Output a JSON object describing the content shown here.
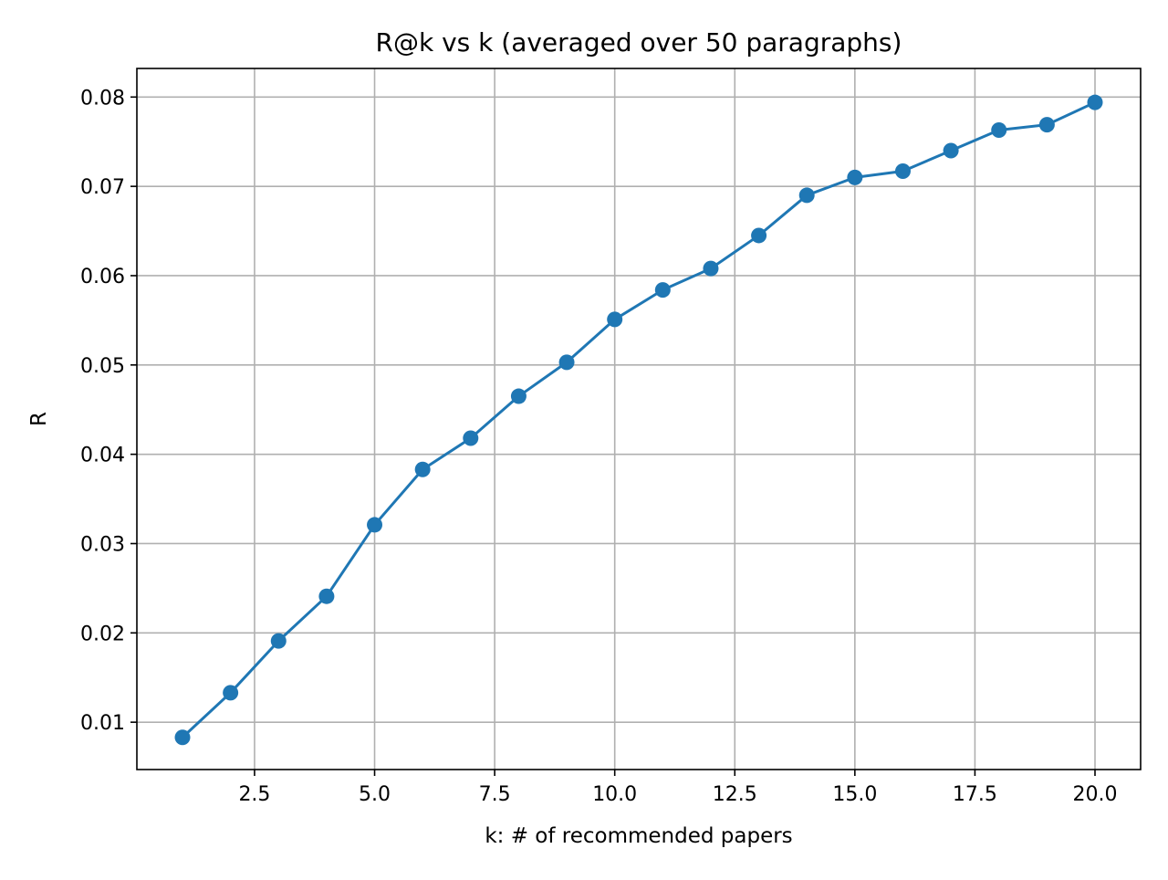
{
  "chart_data": {
    "type": "line",
    "title": "R@k vs k  (averaged over 50 paragraphs)",
    "xlabel": "k: # of recommended papers",
    "ylabel": "R",
    "xlim": [
      0.05,
      20.95
    ],
    "ylim": [
      0.0047,
      0.0832
    ],
    "xticks": [
      2.5,
      5.0,
      7.5,
      10.0,
      12.5,
      15.0,
      17.5,
      20.0
    ],
    "xtick_labels": [
      "2.5",
      "5.0",
      "7.5",
      "10.0",
      "12.5",
      "15.0",
      "17.5",
      "20.0"
    ],
    "yticks": [
      0.01,
      0.02,
      0.03,
      0.04,
      0.05,
      0.06,
      0.07,
      0.08
    ],
    "ytick_labels": [
      "0.01",
      "0.02",
      "0.03",
      "0.04",
      "0.05",
      "0.06",
      "0.07",
      "0.08"
    ],
    "grid": true,
    "series": [
      {
        "color": "#1f77b4",
        "marker": "circle",
        "x": [
          1,
          2,
          3,
          4,
          5,
          6,
          7,
          8,
          9,
          10,
          11,
          12,
          13,
          14,
          15,
          16,
          17,
          18,
          19,
          20
        ],
        "y": [
          0.0083,
          0.0133,
          0.0191,
          0.0241,
          0.0321,
          0.0383,
          0.0418,
          0.0465,
          0.0503,
          0.0551,
          0.0584,
          0.0608,
          0.0645,
          0.069,
          0.071,
          0.0717,
          0.074,
          0.0763,
          0.0769,
          0.0794
        ]
      }
    ]
  }
}
